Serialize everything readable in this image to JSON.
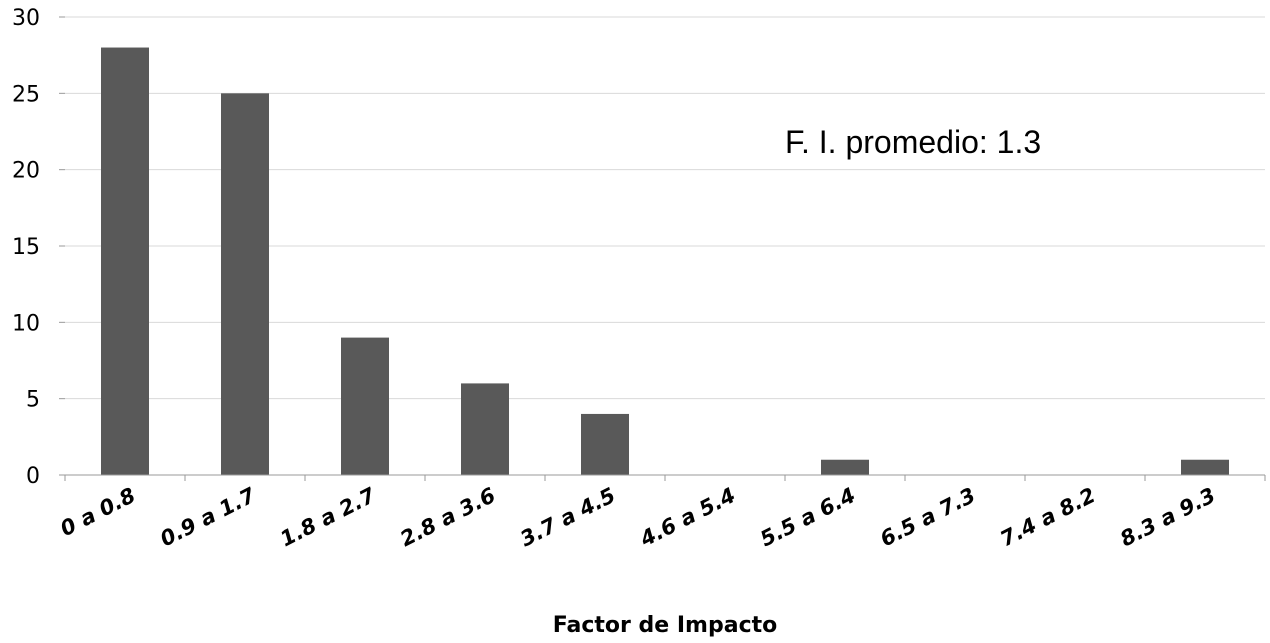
{
  "chart_data": {
    "type": "bar",
    "categories": [
      "0 a 0.8",
      "0.9 a 1.7",
      "1.8 a 2.7",
      "2.8 a 3.6",
      "3.7 a 4.5",
      "4.6 a 5.4",
      "5.5 a 6.4",
      "6.5 a 7.3",
      "7.4 a 8.2",
      "8.3 a 9.3"
    ],
    "values": [
      28,
      25,
      9,
      6,
      4,
      0,
      1,
      0,
      0,
      1
    ],
    "title": "",
    "xlabel": "Factor de Impacto",
    "ylabel": "",
    "ylim": [
      0,
      30
    ],
    "yticks": [
      0,
      5,
      10,
      15,
      20,
      25,
      30
    ],
    "grid": true,
    "annotation": "F. I. promedio: 1.3",
    "bar_color": "#595959",
    "grid_color": "#d9d9d9"
  }
}
